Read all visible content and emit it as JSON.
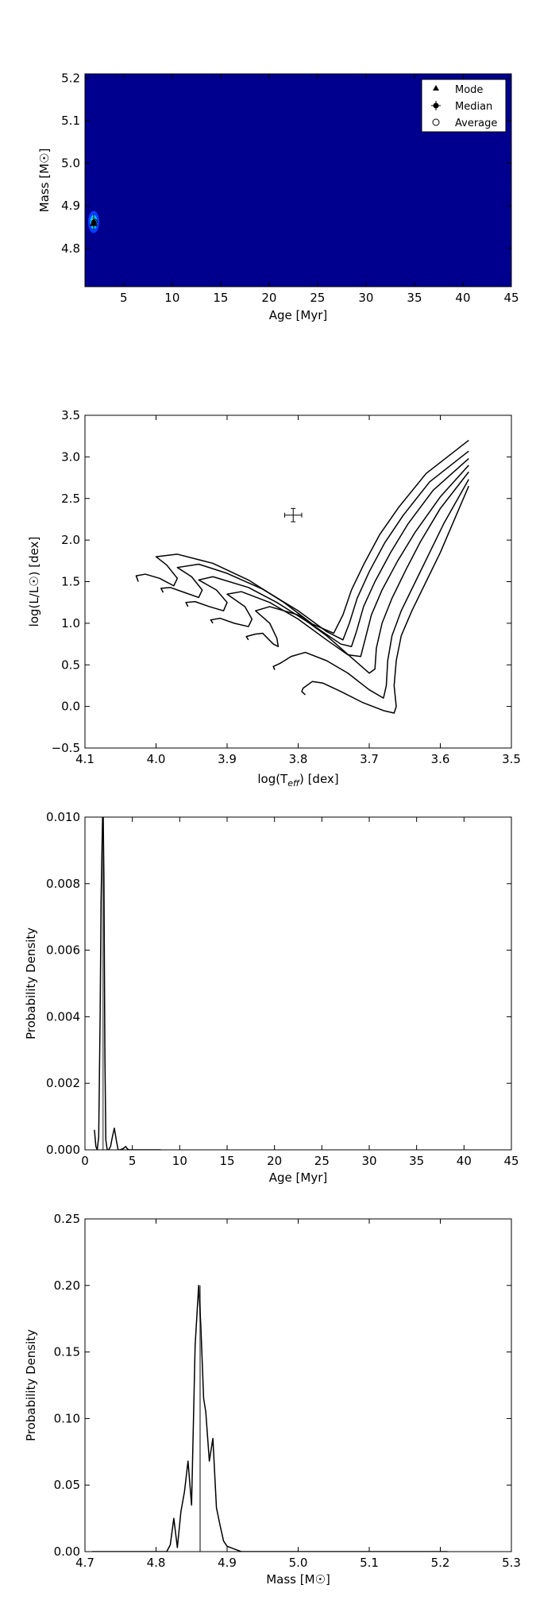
{
  "chart_data": [
    {
      "type": "heatmap",
      "xlabel": "Age [Myr]",
      "ylabel": "Mass [M☉]",
      "xlim": [
        1,
        45
      ],
      "ylim": [
        4.71,
        5.21
      ],
      "xticks": [
        "5",
        "10",
        "15",
        "20",
        "25",
        "30",
        "35",
        "40",
        "45"
      ],
      "yticks": [
        "4.8",
        "4.9",
        "5.0",
        "5.1",
        "5.2"
      ],
      "background_color": "#00008f",
      "peak_colors": [
        "#0a3cff",
        "#00c8ff",
        "#ffffff"
      ],
      "density_peak": {
        "age": 1.9,
        "mass": 4.862
      },
      "legend": {
        "position": "top-right",
        "entries": [
          "Mode",
          "Median",
          "Average"
        ]
      },
      "markers": {
        "mode": {
          "age": 1.9,
          "mass": 4.86
        },
        "median": {
          "age": 1.9,
          "mass": 4.862,
          "age_err": 0.25,
          "mass_err": 0.018
        },
        "average": {
          "age": 2.0,
          "mass": 4.863
        }
      }
    },
    {
      "type": "line",
      "xlabel": "log(T_eff) [dex]",
      "ylabel": "log(L/L☉) [dex]",
      "xlim": [
        4.1,
        3.5
      ],
      "ylim": [
        -0.5,
        3.5
      ],
      "xticks": [
        "4.1",
        "4.0",
        "3.9",
        "3.8",
        "3.7",
        "3.6",
        "3.5"
      ],
      "yticks": [
        "−0.5",
        "0.0",
        "0.5",
        "1.0",
        "1.5",
        "2.0",
        "2.5",
        "3.0",
        "3.5"
      ],
      "point": {
        "x": 3.807,
        "y": 2.3,
        "xerr": 0.012,
        "yerr": 0.08
      },
      "isochrones": [
        [
          [
            3.79,
            0.14
          ],
          [
            3.795,
            0.18
          ],
          [
            3.793,
            0.22
          ],
          [
            3.78,
            0.3
          ],
          [
            3.765,
            0.28
          ],
          [
            3.74,
            0.18
          ],
          [
            3.71,
            0.05
          ],
          [
            3.68,
            -0.05
          ],
          [
            3.665,
            -0.08
          ],
          [
            3.662,
            0.0
          ],
          [
            3.665,
            0.25
          ],
          [
            3.662,
            0.55
          ],
          [
            3.655,
            0.85
          ],
          [
            3.64,
            1.15
          ],
          [
            3.62,
            1.5
          ],
          [
            3.6,
            1.85
          ],
          [
            3.58,
            2.25
          ],
          [
            3.56,
            2.65
          ]
        ],
        [
          [
            3.833,
            0.44
          ],
          [
            3.835,
            0.48
          ],
          [
            3.825,
            0.52
          ],
          [
            3.81,
            0.6
          ],
          [
            3.79,
            0.65
          ],
          [
            3.76,
            0.55
          ],
          [
            3.73,
            0.4
          ],
          [
            3.7,
            0.2
          ],
          [
            3.68,
            0.1
          ],
          [
            3.676,
            0.25
          ],
          [
            3.674,
            0.55
          ],
          [
            3.668,
            0.85
          ],
          [
            3.655,
            1.15
          ],
          [
            3.635,
            1.5
          ],
          [
            3.615,
            1.85
          ],
          [
            3.595,
            2.2
          ],
          [
            3.56,
            2.73
          ]
        ],
        [
          [
            3.87,
            0.8
          ],
          [
            3.873,
            0.84
          ],
          [
            3.86,
            0.87
          ],
          [
            3.85,
            0.88
          ],
          [
            3.835,
            0.75
          ],
          [
            3.828,
            0.72
          ],
          [
            3.83,
            0.82
          ],
          [
            3.84,
            1.0
          ],
          [
            3.86,
            1.15
          ],
          [
            3.84,
            1.2
          ],
          [
            3.8,
            1.1
          ],
          [
            3.76,
            0.85
          ],
          [
            3.72,
            0.55
          ],
          [
            3.7,
            0.4
          ],
          [
            3.692,
            0.45
          ],
          [
            3.69,
            0.7
          ],
          [
            3.682,
            1.0
          ],
          [
            3.668,
            1.3
          ],
          [
            3.648,
            1.65
          ],
          [
            3.628,
            1.98
          ],
          [
            3.6,
            2.38
          ],
          [
            3.56,
            2.82
          ]
        ],
        [
          [
            3.92,
            1.0
          ],
          [
            3.923,
            1.04
          ],
          [
            3.91,
            1.06
          ],
          [
            3.89,
            1.0
          ],
          [
            3.87,
            0.96
          ],
          [
            3.865,
            1.05
          ],
          [
            3.875,
            1.2
          ],
          [
            3.9,
            1.35
          ],
          [
            3.88,
            1.38
          ],
          [
            3.84,
            1.25
          ],
          [
            3.8,
            1.05
          ],
          [
            3.76,
            0.8
          ],
          [
            3.73,
            0.62
          ],
          [
            3.712,
            0.6
          ],
          [
            3.706,
            0.8
          ],
          [
            3.697,
            1.1
          ],
          [
            3.682,
            1.4
          ],
          [
            3.66,
            1.75
          ],
          [
            3.635,
            2.1
          ],
          [
            3.6,
            2.52
          ],
          [
            3.56,
            2.9
          ]
        ],
        [
          [
            3.955,
            1.2
          ],
          [
            3.958,
            1.25
          ],
          [
            3.945,
            1.26
          ],
          [
            3.925,
            1.2
          ],
          [
            3.905,
            1.15
          ],
          [
            3.9,
            1.25
          ],
          [
            3.915,
            1.4
          ],
          [
            3.94,
            1.52
          ],
          [
            3.92,
            1.56
          ],
          [
            3.87,
            1.43
          ],
          [
            3.83,
            1.25
          ],
          [
            3.78,
            0.98
          ],
          [
            3.74,
            0.75
          ],
          [
            3.725,
            0.72
          ],
          [
            3.718,
            0.9
          ],
          [
            3.708,
            1.2
          ],
          [
            3.692,
            1.5
          ],
          [
            3.67,
            1.85
          ],
          [
            3.645,
            2.2
          ],
          [
            3.61,
            2.6
          ],
          [
            3.56,
            2.98
          ]
        ],
        [
          [
            3.99,
            1.37
          ],
          [
            3.993,
            1.42
          ],
          [
            3.98,
            1.43
          ],
          [
            3.96,
            1.37
          ],
          [
            3.94,
            1.31
          ],
          [
            3.935,
            1.4
          ],
          [
            3.95,
            1.56
          ],
          [
            3.97,
            1.67
          ],
          [
            3.94,
            1.71
          ],
          [
            3.9,
            1.6
          ],
          [
            3.85,
            1.41
          ],
          [
            3.8,
            1.15
          ],
          [
            3.76,
            0.9
          ],
          [
            3.737,
            0.8
          ],
          [
            3.728,
            1.0
          ],
          [
            3.717,
            1.3
          ],
          [
            3.7,
            1.62
          ],
          [
            3.678,
            1.97
          ],
          [
            3.652,
            2.3
          ],
          [
            3.615,
            2.7
          ],
          [
            3.56,
            3.07
          ]
        ],
        [
          [
            4.025,
            1.5
          ],
          [
            4.028,
            1.57
          ],
          [
            4.015,
            1.59
          ],
          [
            3.995,
            1.54
          ],
          [
            3.975,
            1.45
          ],
          [
            3.97,
            1.54
          ],
          [
            3.985,
            1.7
          ],
          [
            4.0,
            1.8
          ],
          [
            3.97,
            1.83
          ],
          [
            3.92,
            1.72
          ],
          [
            3.87,
            1.52
          ],
          [
            3.82,
            1.25
          ],
          [
            3.78,
            0.99
          ],
          [
            3.75,
            0.88
          ],
          [
            3.737,
            1.1
          ],
          [
            3.725,
            1.4
          ],
          [
            3.707,
            1.72
          ],
          [
            3.685,
            2.07
          ],
          [
            3.658,
            2.4
          ],
          [
            3.62,
            2.8
          ],
          [
            3.56,
            3.2
          ]
        ]
      ]
    },
    {
      "type": "line",
      "xlabel": "Age [Myr]",
      "ylabel": "Probability Density",
      "xlim": [
        0,
        45
      ],
      "ylim": [
        0,
        0.01
      ],
      "xticks": [
        "0",
        "5",
        "10",
        "15",
        "20",
        "25",
        "30",
        "35",
        "40",
        "45"
      ],
      "yticks": [
        "0.000",
        "0.002",
        "0.004",
        "0.006",
        "0.008",
        "0.010"
      ],
      "vline": {
        "x": 1.9,
        "color": "#808080"
      },
      "x": [
        1.0,
        1.15,
        1.3,
        1.45,
        1.6,
        1.7,
        1.8,
        1.9,
        2.0,
        2.1,
        2.2,
        2.35,
        2.5,
        2.7,
        2.9,
        3.1,
        3.3,
        3.5,
        3.7,
        4.0,
        4.3,
        4.5,
        4.7,
        5.0,
        6.0,
        8.0
      ],
      "y": [
        0.0006,
        0.0001,
        0.0,
        0.0004,
        0.004,
        0.0075,
        0.0091,
        0.0106,
        0.0082,
        0.003,
        0.0003,
        0.0,
        0.0,
        0.0001,
        0.0004,
        0.00065,
        0.0003,
        0.0,
        0.0,
        3e-05,
        0.0001,
        2e-05,
        0.0,
        0.0,
        0.0,
        0.0
      ]
    },
    {
      "type": "line",
      "xlabel": "Mass [M☉]",
      "ylabel": "Probability Density",
      "xlim": [
        4.7,
        5.3
      ],
      "ylim": [
        0,
        0.25
      ],
      "xticks": [
        "4.7",
        "4.8",
        "4.9",
        "5.0",
        "5.1",
        "5.2",
        "5.3"
      ],
      "yticks": [
        "0.00",
        "0.05",
        "0.10",
        "0.15",
        "0.20",
        "0.25"
      ],
      "vline": {
        "x": 4.862,
        "color": "#808080"
      },
      "x": [
        4.71,
        4.8,
        4.815,
        4.82,
        4.825,
        4.83,
        4.835,
        4.84,
        4.845,
        4.85,
        4.855,
        4.86,
        4.863,
        4.867,
        4.87,
        4.875,
        4.88,
        4.885,
        4.89,
        4.895,
        4.9,
        4.905,
        4.91,
        4.92,
        4.93,
        5.0,
        5.1,
        5.21
      ],
      "y": [
        0.0,
        0.0,
        0.0,
        0.005,
        0.025,
        0.003,
        0.03,
        0.045,
        0.068,
        0.035,
        0.155,
        0.2,
        0.17,
        0.115,
        0.105,
        0.068,
        0.085,
        0.033,
        0.02,
        0.008,
        0.004,
        0.003,
        0.002,
        0.0,
        0.0,
        0.0,
        0.0,
        0.0
      ]
    }
  ]
}
